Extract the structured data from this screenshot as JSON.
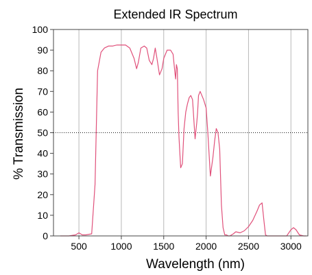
{
  "chart_data": {
    "type": "line",
    "title": "Extended IR Spectrum",
    "xlabel": "Wavelength (nm)",
    "ylabel": "% Transmission",
    "xlim": [
      200,
      3200
    ],
    "ylim": [
      0,
      100
    ],
    "x_ticks": [
      500,
      1000,
      1500,
      2000,
      2500,
      3000
    ],
    "y_ticks": [
      0,
      10,
      20,
      30,
      40,
      50,
      60,
      70,
      80,
      90,
      100
    ],
    "grid": "vertical lines at x ticks",
    "reference_line": {
      "y": 50,
      "style": "dotted"
    },
    "line_color": "#e0507a",
    "series": [
      {
        "x": [
          280,
          380,
          460,
          500,
          540,
          580,
          650,
          690,
          720,
          760,
          800,
          850,
          900,
          950,
          1000,
          1050,
          1100,
          1150,
          1180,
          1200,
          1230,
          1270,
          1300,
          1330,
          1360,
          1380,
          1400,
          1420,
          1450,
          1480,
          1500,
          1540,
          1580,
          1610,
          1630,
          1640,
          1650,
          1660,
          1670,
          1680,
          1690,
          1700,
          1720,
          1740,
          1760,
          1780,
          1800,
          1820,
          1840,
          1870,
          1890,
          1900,
          1910,
          1930,
          1950,
          1970,
          2000,
          2020,
          2050,
          2080,
          2100,
          2120,
          2140,
          2160,
          2180,
          2200,
          2220,
          2240,
          2260,
          2280,
          2300,
          2320,
          2350,
          2400,
          2450,
          2500,
          2550,
          2600,
          2630,
          2660,
          2680,
          2700,
          2720,
          2800,
          2900,
          2950,
          3000,
          3030,
          3060,
          3100,
          3150,
          3180
        ],
        "y": [
          0,
          0,
          0.5,
          1.5,
          0.5,
          0.5,
          1,
          25,
          80,
          89,
          91,
          92,
          92,
          92.5,
          92.5,
          92.5,
          91,
          86,
          81,
          84,
          91,
          92,
          91,
          85,
          83,
          86,
          91,
          86,
          78,
          81,
          86,
          90,
          90,
          88,
          80,
          76,
          83,
          81,
          60,
          48,
          40,
          33,
          35,
          52,
          60,
          64,
          67,
          68,
          66,
          47,
          55,
          60,
          68,
          70,
          68,
          66,
          62,
          50,
          29,
          38,
          46,
          52,
          50,
          42,
          15,
          4,
          0.5,
          0.5,
          0,
          0,
          0.5,
          1,
          2,
          1.5,
          2.5,
          4.5,
          7.5,
          12,
          15,
          16,
          8,
          0.5,
          0,
          0,
          0,
          0,
          3,
          4,
          3,
          0.5,
          0,
          0
        ]
      }
    ]
  }
}
